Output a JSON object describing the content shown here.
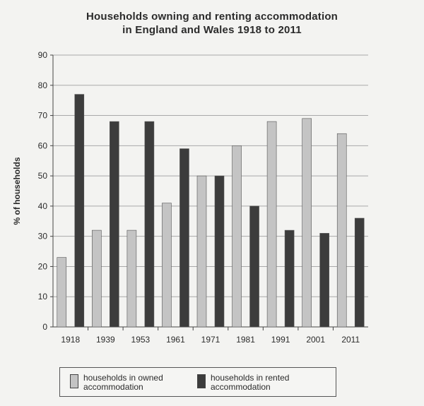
{
  "chart_data": {
    "type": "bar",
    "title": "Households owning and renting accommodation in England and Wales 1918 to 2011",
    "title_lines": [
      "Households owning and renting accommodation",
      "in England and Wales 1918 to 2011"
    ],
    "xlabel": "",
    "ylabel": "% of households",
    "ylim": [
      0,
      90
    ],
    "yticks": [
      0,
      10,
      20,
      30,
      40,
      50,
      60,
      70,
      80,
      90
    ],
    "grid": true,
    "legend_position": "bottom",
    "categories": [
      "1918",
      "1939",
      "1953",
      "1961",
      "1971",
      "1981",
      "1991",
      "2001",
      "2011"
    ],
    "series": [
      {
        "name": "households in owned accommodation",
        "legend_lines": [
          "households in owned",
          "accommodation"
        ],
        "color": "#c4c4c4",
        "values": [
          23,
          32,
          32,
          41,
          50,
          60,
          68,
          69,
          64
        ]
      },
      {
        "name": "households in rented accommodation",
        "legend_lines": [
          "households in rented",
          "accommodation"
        ],
        "color": "#3c3c3c",
        "values": [
          77,
          68,
          68,
          59,
          50,
          40,
          32,
          31,
          36
        ]
      }
    ]
  }
}
